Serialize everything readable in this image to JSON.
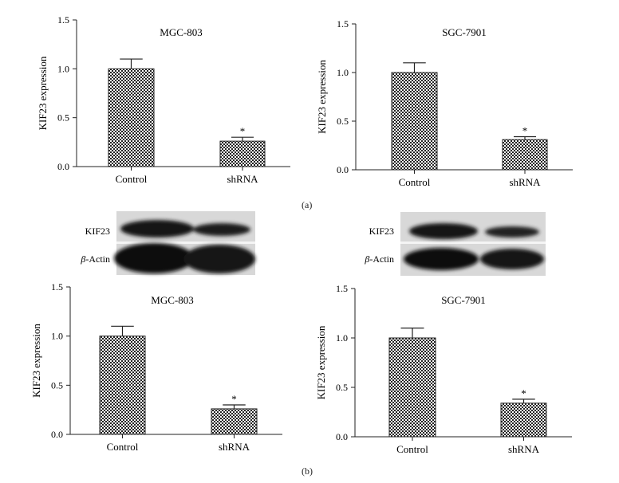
{
  "panel_labels": [
    "(a)",
    "(b)"
  ],
  "blots": [
    {
      "band_labels": [
        "KIF23",
        "β-Actin"
      ],
      "band_prefix": "β",
      "band_suffix": "-Actin"
    },
    {
      "band_labels": [
        "KIF23",
        "β-Actin"
      ],
      "band_prefix": "β",
      "band_suffix": "-Actin"
    }
  ],
  "chart_data": [
    {
      "type": "bar",
      "panel": "a",
      "title": "MGC-803",
      "ylabel": "KIF23 expression",
      "categories": [
        "Control",
        "shRNA"
      ],
      "values": [
        1.0,
        0.26
      ],
      "errors": [
        0.1,
        0.04
      ],
      "significance": [
        "",
        "*"
      ],
      "ylim": [
        0,
        1.5
      ],
      "yticks": [
        "0.0",
        "0.5",
        "1.0",
        "1.5"
      ]
    },
    {
      "type": "bar",
      "panel": "a",
      "title": "SGC-7901",
      "ylabel": "KIF23 expression",
      "categories": [
        "Control",
        "shRNA"
      ],
      "values": [
        1.0,
        0.31
      ],
      "errors": [
        0.1,
        0.03
      ],
      "significance": [
        "",
        "*"
      ],
      "ylim": [
        0,
        1.5
      ],
      "yticks": [
        "0.0",
        "0.5",
        "1.0",
        "1.5"
      ]
    },
    {
      "type": "bar",
      "panel": "b",
      "title": "MGC-803",
      "ylabel": "KIF23 expression",
      "categories": [
        "Control",
        "shRNA"
      ],
      "values": [
        1.0,
        0.26
      ],
      "errors": [
        0.1,
        0.04
      ],
      "significance": [
        "",
        "*"
      ],
      "ylim": [
        0,
        1.5
      ],
      "yticks": [
        "0.0",
        "0.5",
        "1.0",
        "1.5"
      ]
    },
    {
      "type": "bar",
      "panel": "b",
      "title": "SGC-7901",
      "ylabel": "KIF23 expression",
      "categories": [
        "Control",
        "shRNA"
      ],
      "values": [
        1.0,
        0.34
      ],
      "errors": [
        0.1,
        0.04
      ],
      "significance": [
        "",
        "*"
      ],
      "ylim": [
        0,
        1.5
      ],
      "yticks": [
        "0.0",
        "0.5",
        "1.0",
        "1.5"
      ]
    }
  ]
}
